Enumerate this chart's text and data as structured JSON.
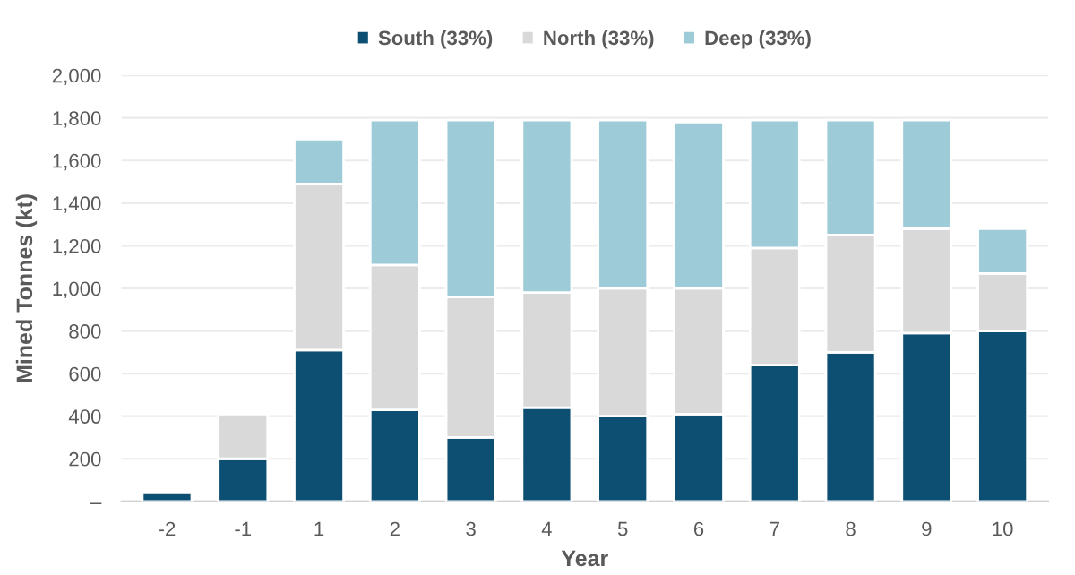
{
  "chart_data": {
    "type": "bar",
    "stacked": true,
    "xlabel": "Year",
    "ylabel": "Mined Tonnes (kt)",
    "categories": [
      "-2",
      "-1",
      "1",
      "2",
      "3",
      "4",
      "5",
      "6",
      "7",
      "8",
      "9",
      "10"
    ],
    "series": [
      {
        "name": "South (33%)",
        "color": "#0d4f72",
        "values": [
          40,
          200,
          710,
          430,
          300,
          440,
          400,
          410,
          640,
          700,
          790,
          800
        ]
      },
      {
        "name": "North (33%)",
        "color": "#d9d9d9",
        "values": [
          null,
          210,
          780,
          680,
          660,
          540,
          600,
          590,
          550,
          550,
          490,
          270
        ]
      },
      {
        "name": "Deep (33%)",
        "color": "#9ecbd8",
        "values": [
          null,
          null,
          210,
          680,
          830,
          810,
          790,
          780,
          600,
          540,
          510,
          210
        ]
      }
    ],
    "ylim": [
      0,
      2000
    ],
    "yticks": [
      {
        "value": 0,
        "label": "–"
      },
      200,
      400,
      600,
      800,
      {
        "value": 1000,
        "label": "1,000"
      },
      {
        "value": 1200,
        "label": "1,200"
      },
      {
        "value": 1400,
        "label": "1,400"
      },
      {
        "value": 1600,
        "label": "1,600"
      },
      {
        "value": 1800,
        "label": "1,800"
      },
      {
        "value": 2000,
        "label": "2,000"
      }
    ],
    "grid": "y",
    "legend": "top"
  }
}
